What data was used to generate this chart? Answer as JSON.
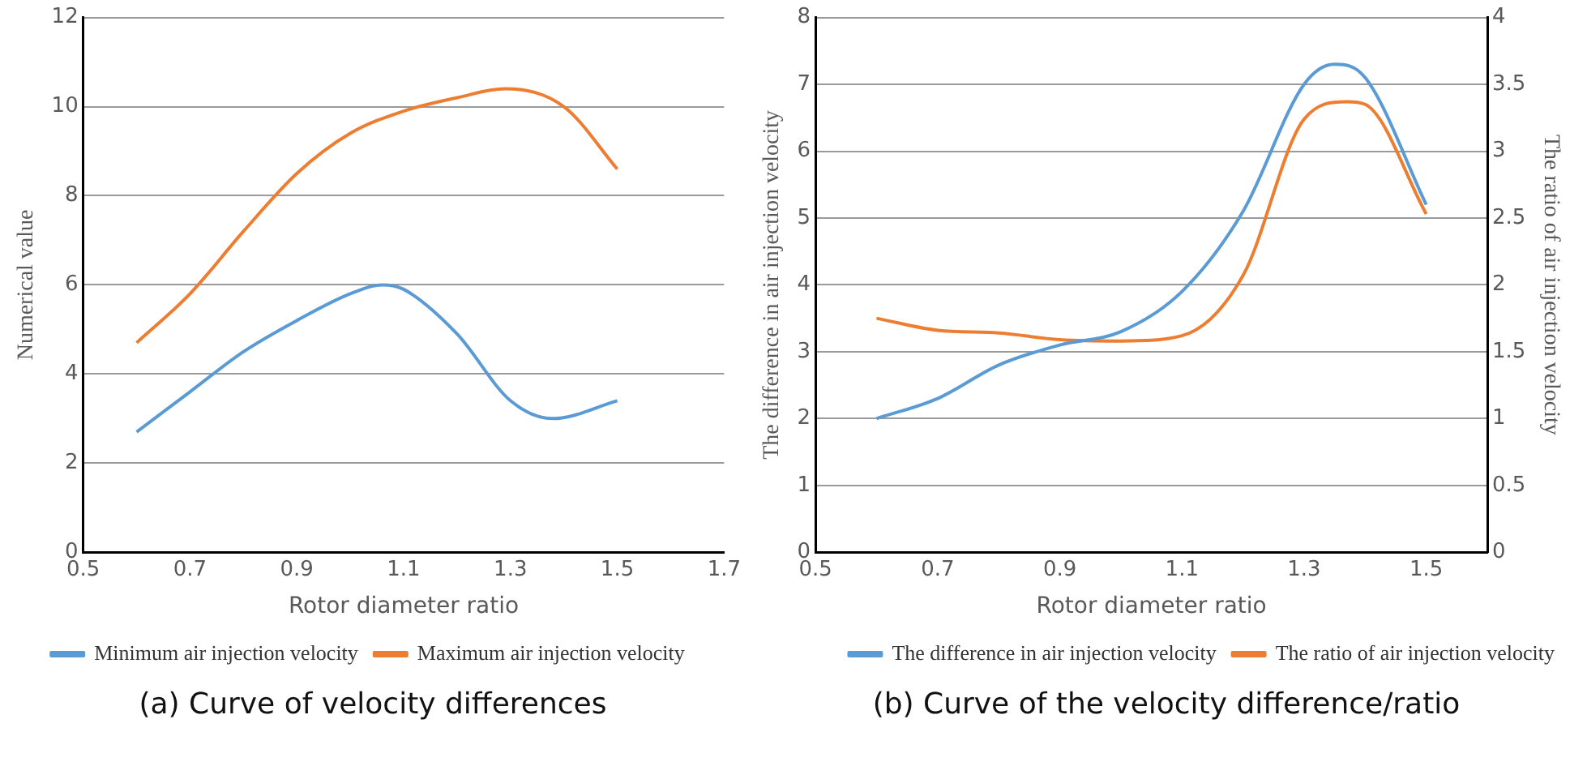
{
  "chart_data": [
    {
      "type": "line",
      "xlabel": "Rotor diameter ratio",
      "ylabel": "Numerical value",
      "annotations": [
        "(a) Curve of velocity differences"
      ],
      "xlim": [
        0.5,
        1.7
      ],
      "xticks": [
        0.5,
        0.7,
        0.9,
        1.1,
        1.3,
        1.5,
        1.7
      ],
      "ylim": [
        0,
        12
      ],
      "yticks": [
        0,
        2,
        4,
        6,
        8,
        10,
        12
      ],
      "grid": "y",
      "legend": "bottom",
      "marker": "none",
      "series": [
        {
          "name": "Minimum air injection velocity",
          "color": "#5b9bd5",
          "x": [
            0.6,
            0.7,
            0.8,
            0.9,
            1.0,
            1.06,
            1.1,
            1.2,
            1.3,
            1.38,
            1.5
          ],
          "values": [
            2.7,
            3.6,
            4.5,
            5.2,
            5.8,
            6.0,
            5.9,
            4.9,
            3.4,
            3.0,
            3.4
          ]
        },
        {
          "name": "Maximum air injection velocity",
          "color": "#ed7d31",
          "x": [
            0.6,
            0.7,
            0.8,
            0.9,
            1.0,
            1.1,
            1.2,
            1.29,
            1.4,
            1.5
          ],
          "values": [
            4.7,
            5.8,
            7.2,
            8.5,
            9.4,
            9.9,
            10.2,
            10.4,
            10.0,
            8.6
          ]
        }
      ]
    },
    {
      "type": "line",
      "xlabel": "Rotor diameter ratio",
      "ylabel": "The difference in air injection velocity",
      "y2label": "The ratio of air injection velocity",
      "annotations": [
        "(b) Curve of the velocity difference/ratio"
      ],
      "xlim": [
        0.5,
        1.6
      ],
      "xticks": [
        0.5,
        0.7,
        0.9,
        1.1,
        1.3,
        1.5
      ],
      "ylim": [
        0,
        8
      ],
      "yticks": [
        0,
        1,
        2,
        3,
        4,
        5,
        6,
        7,
        8
      ],
      "y2lim": [
        0,
        4
      ],
      "y2ticks": [
        0,
        0.5,
        1,
        1.5,
        2,
        2.5,
        3,
        3.5,
        4
      ],
      "grid": "y",
      "legend": "bottom right",
      "marker": "none",
      "series": [
        {
          "name": "The difference in air injection velocity",
          "color": "#5b9bd5",
          "x": [
            0.6,
            0.7,
            0.8,
            0.9,
            1.0,
            1.1,
            1.2,
            1.3,
            1.35,
            1.4,
            1.5
          ],
          "values": [
            2.0,
            2.3,
            2.8,
            3.1,
            3.3,
            3.9,
            5.1,
            7.0,
            7.3,
            7.1,
            5.2
          ]
        },
        {
          "name": "The ratio of air injection velocity",
          "color": "#ed7d31",
          "axis": "y2",
          "x": [
            0.6,
            0.7,
            0.8,
            0.9,
            1.0,
            1.1,
            1.2,
            1.3,
            1.37,
            1.4,
            1.5
          ],
          "values": [
            1.75,
            1.66,
            1.64,
            1.59,
            1.58,
            1.62,
            2.07,
            3.24,
            3.37,
            3.35,
            2.53
          ]
        }
      ]
    }
  ]
}
